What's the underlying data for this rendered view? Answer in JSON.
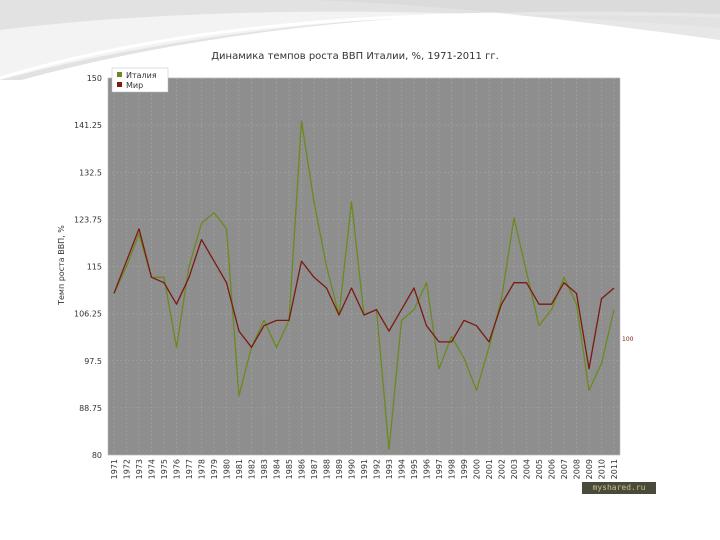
{
  "chart_data": {
    "type": "line",
    "title": "Динамика темпов роста ВВП Италии, %, 1971-2011 гг.",
    "ylabel": "Темп роста ВВП, %",
    "xlabel": "",
    "ylim": [
      80,
      150
    ],
    "yticks": [
      "80",
      "88.75",
      "97.5",
      "106.25",
      "115",
      "123.75",
      "132.5",
      "141.25",
      "150"
    ],
    "grid": true,
    "legend_position": "top-left",
    "x": [
      "1971",
      "1972",
      "1973",
      "1974",
      "1975",
      "1976",
      "1977",
      "1978",
      "1979",
      "1980",
      "1981",
      "1982",
      "1983",
      "1984",
      "1985",
      "1986",
      "1987",
      "1988",
      "1989",
      "1990",
      "1991",
      "1992",
      "1993",
      "1994",
      "1995",
      "1996",
      "1997",
      "1998",
      "1999",
      "2000",
      "2001",
      "2002",
      "2003",
      "2004",
      "2005",
      "2006",
      "2007",
      "2008",
      "2009",
      "2010",
      "2011"
    ],
    "series": [
      {
        "name": "Италия",
        "color": "#6b8a1e",
        "values": [
          110,
          115,
          121,
          113,
          113,
          100,
          115,
          123,
          125,
          122,
          91,
          100,
          105,
          100,
          105,
          142,
          127,
          115,
          106,
          127,
          106,
          107,
          81,
          105,
          107,
          112,
          96,
          102,
          98,
          92,
          100,
          109,
          124,
          114,
          104,
          107,
          113,
          108,
          92,
          97,
          107
        ]
      },
      {
        "name": "Мир",
        "color": "#7b1a10",
        "values": [
          110,
          116,
          122,
          113,
          112,
          108,
          113,
          120,
          116,
          112,
          103,
          100,
          104,
          105,
          105,
          116,
          113,
          111,
          106,
          111,
          106,
          107,
          103,
          107,
          111,
          104,
          101,
          101,
          105,
          104,
          101,
          108,
          112,
          112,
          108,
          108,
          112,
          110,
          96,
          109,
          111
        ]
      }
    ],
    "annotations": [
      {
        "text": "100",
        "y": 101.5
      }
    ]
  },
  "watermark": "myshared.ru"
}
